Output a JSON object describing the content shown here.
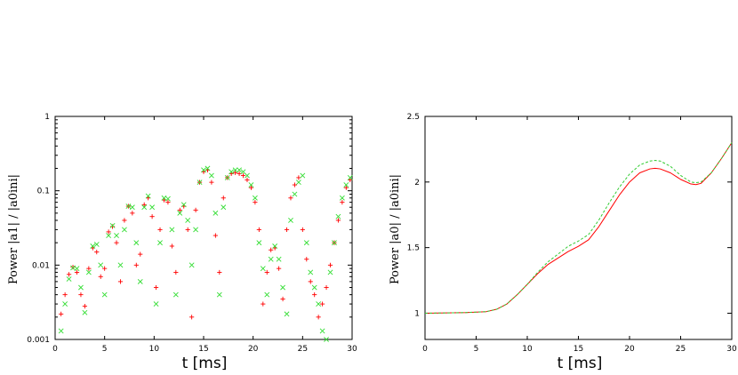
{
  "chart_data": [
    {
      "type": "scatter",
      "yscale": "log",
      "title": "",
      "xlabel": "t [ms]",
      "ylabel": "Power  |a1| / |a0ini|",
      "xlim": [
        0,
        30
      ],
      "ylim": [
        0.001,
        1
      ],
      "x_ticks": [
        "0",
        "5",
        "10",
        "15",
        "20",
        "25",
        "30"
      ],
      "y_ticks": [
        "0.001",
        "0.01",
        "0.1",
        "1"
      ],
      "series": [
        {
          "name": "red (+)",
          "color": "#ff0000",
          "marker": "+",
          "x": [
            0.6,
            1.0,
            1.4,
            1.8,
            2.2,
            2.6,
            3.0,
            3.4,
            3.8,
            4.2,
            4.6,
            5.0,
            5.4,
            5.8,
            6.2,
            6.6,
            7.0,
            7.4,
            7.8,
            8.2,
            8.6,
            9.0,
            9.4,
            9.8,
            10.2,
            10.6,
            11.0,
            11.4,
            11.8,
            12.2,
            12.6,
            13.0,
            13.4,
            13.8,
            14.2,
            14.6,
            15.0,
            15.4,
            15.8,
            16.2,
            16.6,
            17.0,
            17.4,
            17.8,
            18.2,
            18.6,
            19.0,
            19.4,
            19.8,
            20.2,
            20.6,
            21.0,
            21.4,
            21.8,
            22.2,
            22.6,
            23.0,
            23.4,
            23.8,
            24.2,
            24.6,
            25.0,
            25.4,
            25.8,
            26.2,
            26.6,
            27.0,
            27.4,
            27.8,
            28.2,
            28.6,
            29.0,
            29.4,
            29.8
          ],
          "values": [
            0.0022,
            0.004,
            0.0075,
            0.0094,
            0.008,
            0.004,
            0.0028,
            0.009,
            0.017,
            0.015,
            0.007,
            0.009,
            0.028,
            0.033,
            0.02,
            0.006,
            0.04,
            0.062,
            0.05,
            0.01,
            0.014,
            0.065,
            0.08,
            0.045,
            0.005,
            0.03,
            0.075,
            0.07,
            0.018,
            0.008,
            0.055,
            0.062,
            0.03,
            0.002,
            0.055,
            0.13,
            0.18,
            0.19,
            0.13,
            0.025,
            0.008,
            0.08,
            0.15,
            0.17,
            0.175,
            0.17,
            0.16,
            0.14,
            0.11,
            0.07,
            0.03,
            0.003,
            0.008,
            0.016,
            0.017,
            0.009,
            0.0035,
            0.03,
            0.08,
            0.12,
            0.15,
            0.03,
            0.012,
            0.006,
            0.004,
            0.002,
            0.003,
            0.005,
            0.01,
            0.02,
            0.04,
            0.07,
            0.11,
            0.14
          ]
        },
        {
          "name": "green (x)",
          "color": "#33dd33",
          "marker": "x",
          "x": [
            0.6,
            1.0,
            1.4,
            1.8,
            2.2,
            2.6,
            3.0,
            3.4,
            3.8,
            4.2,
            4.6,
            5.0,
            5.4,
            5.8,
            6.2,
            6.6,
            7.0,
            7.4,
            7.8,
            8.2,
            8.6,
            9.0,
            9.4,
            9.8,
            10.2,
            10.6,
            11.0,
            11.4,
            11.8,
            12.2,
            12.6,
            13.0,
            13.4,
            13.8,
            14.2,
            14.6,
            15.0,
            15.4,
            15.8,
            16.2,
            16.6,
            17.0,
            17.4,
            17.8,
            18.2,
            18.6,
            19.0,
            19.4,
            19.8,
            20.2,
            20.6,
            21.0,
            21.4,
            21.8,
            22.2,
            22.6,
            23.0,
            23.4,
            23.8,
            24.2,
            24.6,
            25.0,
            25.4,
            25.8,
            26.2,
            26.6,
            27.0,
            27.4,
            27.8,
            28.2,
            28.6,
            29.0,
            29.4,
            29.8
          ],
          "values": [
            0.0013,
            0.003,
            0.0065,
            0.0092,
            0.009,
            0.005,
            0.0023,
            0.008,
            0.018,
            0.019,
            0.01,
            0.004,
            0.025,
            0.034,
            0.025,
            0.01,
            0.03,
            0.062,
            0.06,
            0.02,
            0.006,
            0.06,
            0.085,
            0.06,
            0.003,
            0.02,
            0.08,
            0.078,
            0.03,
            0.004,
            0.05,
            0.065,
            0.04,
            0.01,
            0.03,
            0.13,
            0.19,
            0.2,
            0.16,
            0.05,
            0.004,
            0.06,
            0.15,
            0.18,
            0.19,
            0.19,
            0.18,
            0.16,
            0.12,
            0.08,
            0.02,
            0.009,
            0.004,
            0.012,
            0.018,
            0.012,
            0.005,
            0.0022,
            0.04,
            0.09,
            0.13,
            0.16,
            0.02,
            0.008,
            0.005,
            0.003,
            0.0013,
            0.001,
            0.008,
            0.02,
            0.045,
            0.08,
            0.12,
            0.15
          ]
        }
      ]
    },
    {
      "type": "line",
      "title": "",
      "xlabel": "t [ms]",
      "ylabel": "Power  |a0| / |a0ini|",
      "xlim": [
        0,
        30
      ],
      "ylim": [
        0.8,
        2.5
      ],
      "x_ticks": [
        "0",
        "5",
        "10",
        "15",
        "20",
        "25",
        "30"
      ],
      "y_ticks": [
        "1",
        "1.5",
        "2",
        "2.5"
      ],
      "series": [
        {
          "name": "red solid",
          "color": "#ff0000",
          "dash": "",
          "x": [
            0,
            2,
            4,
            6,
            7,
            8,
            9,
            10,
            11,
            12,
            13,
            14,
            15,
            16,
            17,
            18,
            19,
            20,
            21,
            22,
            22.5,
            23,
            24,
            25,
            26,
            26.5,
            27,
            28,
            29,
            30
          ],
          "values": [
            1.0,
            1.002,
            1.005,
            1.012,
            1.03,
            1.07,
            1.14,
            1.22,
            1.3,
            1.37,
            1.42,
            1.47,
            1.51,
            1.56,
            1.66,
            1.78,
            1.9,
            2.0,
            2.07,
            2.1,
            2.105,
            2.1,
            2.07,
            2.02,
            1.985,
            1.98,
            1.99,
            2.07,
            2.18,
            2.3
          ]
        },
        {
          "name": "green dashed",
          "color": "#33cc33",
          "dash": "3,2",
          "x": [
            0,
            2,
            4,
            6,
            7,
            8,
            9,
            10,
            11,
            12,
            13,
            14,
            15,
            16,
            17,
            18,
            19,
            20,
            21,
            22,
            22.5,
            23,
            24,
            25,
            26,
            26.5,
            27,
            28,
            29,
            30
          ],
          "values": [
            1.0,
            1.002,
            1.005,
            1.012,
            1.03,
            1.07,
            1.14,
            1.22,
            1.31,
            1.39,
            1.45,
            1.51,
            1.55,
            1.6,
            1.71,
            1.84,
            1.96,
            2.06,
            2.13,
            2.16,
            2.165,
            2.16,
            2.12,
            2.05,
            2.0,
            1.995,
            2.0,
            2.07,
            2.18,
            2.3
          ]
        }
      ]
    }
  ]
}
